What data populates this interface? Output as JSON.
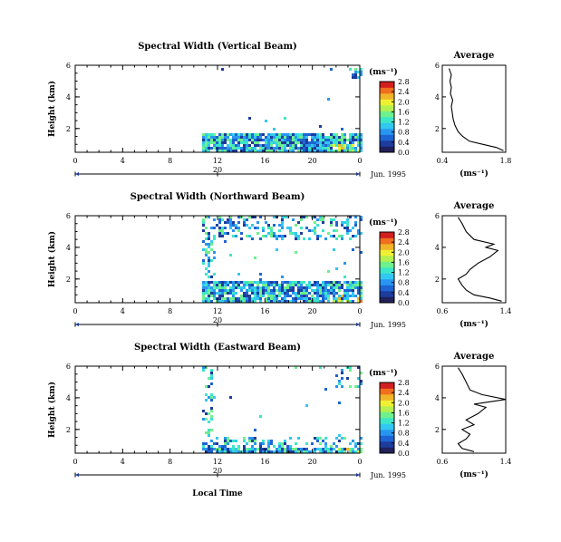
{
  "figure": {
    "date_label": "Jun. 1995",
    "xlabel": "Local Time",
    "colorbar_unit": "(ms⁻¹)",
    "avg_unit": "(ms⁻¹)",
    "colormap": [
      "#20205a",
      "#1e3c9c",
      "#1e64d2",
      "#2896f0",
      "#32c8f0",
      "#3ce6c8",
      "#6ef08c",
      "#b4f050",
      "#f0f032",
      "#f0b428",
      "#f06e1e",
      "#d21e1e"
    ]
  },
  "chart_data": [
    {
      "type": "heatmap",
      "panel": "vertical",
      "title": "Spectral Width (Vertical Beam)",
      "ylabel": "Height (km)",
      "x_ticks": [
        "0",
        "4",
        "8",
        "12",
        "16",
        "20",
        "0"
      ],
      "x_range": [
        0,
        24
      ],
      "y_ticks": [
        "2",
        "4",
        "6"
      ],
      "y_range": [
        0.5,
        6
      ],
      "day_label": "20",
      "colorbar_ticks": [
        "0.0",
        "0.4",
        "0.8",
        "1.2",
        "1.6",
        "2.0",
        "2.4",
        "2.8"
      ],
      "colorbar_range": [
        0,
        2.8
      ],
      "data_extent": {
        "start_hour": 10.7,
        "end_hour": 24
      },
      "average": {
        "title": "Average",
        "x_ticks": [
          "0.4",
          "1.8"
        ],
        "x_range": [
          0.4,
          1.8
        ],
        "y_ticks": [
          "2",
          "4",
          "6"
        ],
        "y_range": [
          0.5,
          6
        ],
        "profile": [
          [
            1.75,
            0.6
          ],
          [
            1.6,
            0.8
          ],
          [
            1.3,
            1.0
          ],
          [
            1.0,
            1.2
          ],
          [
            0.85,
            1.5
          ],
          [
            0.75,
            1.8
          ],
          [
            0.68,
            2.2
          ],
          [
            0.64,
            2.6
          ],
          [
            0.62,
            3.0
          ],
          [
            0.6,
            3.4
          ],
          [
            0.63,
            3.8
          ],
          [
            0.58,
            4.2
          ],
          [
            0.6,
            4.6
          ],
          [
            0.57,
            5.0
          ],
          [
            0.6,
            5.4
          ],
          [
            0.55,
            5.8
          ]
        ]
      }
    },
    {
      "type": "heatmap",
      "panel": "northward",
      "title": "Spectral Width (Northward Beam)",
      "ylabel": "Height (km)",
      "x_ticks": [
        "0",
        "4",
        "8",
        "12",
        "16",
        "20",
        "0"
      ],
      "x_range": [
        0,
        24
      ],
      "y_ticks": [
        "2",
        "4",
        "6"
      ],
      "y_range": [
        0.5,
        6
      ],
      "day_label": "20",
      "colorbar_ticks": [
        "0.0",
        "0.4",
        "0.8",
        "1.2",
        "1.6",
        "2.0",
        "2.4",
        "2.8"
      ],
      "colorbar_range": [
        0,
        2.8
      ],
      "data_extent": {
        "start_hour": 10.7,
        "end_hour": 24
      },
      "average": {
        "title": "Average",
        "x_ticks": [
          "0.6",
          "1.4"
        ],
        "x_range": [
          0.6,
          1.4
        ],
        "y_ticks": [
          "2",
          "4",
          "6"
        ],
        "y_range": [
          0.5,
          6
        ],
        "profile": [
          [
            1.35,
            0.6
          ],
          [
            1.2,
            0.8
          ],
          [
            1.0,
            1.0
          ],
          [
            0.9,
            1.3
          ],
          [
            0.85,
            1.6
          ],
          [
            0.8,
            2.0
          ],
          [
            0.9,
            2.3
          ],
          [
            0.95,
            2.6
          ],
          [
            1.05,
            3.0
          ],
          [
            1.2,
            3.4
          ],
          [
            1.3,
            3.8
          ],
          [
            1.15,
            4.0
          ],
          [
            1.25,
            4.2
          ],
          [
            1.0,
            4.5
          ],
          [
            0.9,
            5.0
          ],
          [
            0.85,
            5.5
          ],
          [
            0.8,
            5.9
          ]
        ]
      }
    },
    {
      "type": "heatmap",
      "panel": "eastward",
      "title": "Spectral Width (Eastward Beam)",
      "ylabel": "Height (km)",
      "x_ticks": [
        "0",
        "4",
        "8",
        "12",
        "16",
        "20",
        "0"
      ],
      "x_range": [
        0,
        24
      ],
      "y_ticks": [
        "2",
        "4",
        "6"
      ],
      "y_range": [
        0.5,
        6
      ],
      "day_label": "20",
      "colorbar_ticks": [
        "0.0",
        "0.4",
        "0.8",
        "1.2",
        "1.6",
        "2.0",
        "2.4",
        "2.8"
      ],
      "colorbar_range": [
        0,
        2.8
      ],
      "data_extent": {
        "start_hour": 10.7,
        "end_hour": 24
      },
      "average": {
        "title": "Average",
        "x_ticks": [
          "0.6",
          "1.4"
        ],
        "x_range": [
          0.6,
          1.4
        ],
        "y_ticks": [
          "2",
          "4",
          "6"
        ],
        "y_range": [
          0.5,
          6
        ],
        "profile": [
          [
            1.0,
            0.6
          ],
          [
            0.85,
            0.8
          ],
          [
            0.8,
            1.1
          ],
          [
            0.9,
            1.4
          ],
          [
            0.95,
            1.7
          ],
          [
            0.85,
            2.0
          ],
          [
            1.0,
            2.3
          ],
          [
            0.9,
            2.6
          ],
          [
            1.05,
            3.0
          ],
          [
            1.15,
            3.4
          ],
          [
            1.0,
            3.6
          ],
          [
            1.4,
            3.9
          ],
          [
            1.1,
            4.2
          ],
          [
            0.95,
            4.5
          ],
          [
            0.9,
            5.0
          ],
          [
            0.85,
            5.5
          ],
          [
            0.8,
            5.9
          ]
        ]
      }
    }
  ]
}
